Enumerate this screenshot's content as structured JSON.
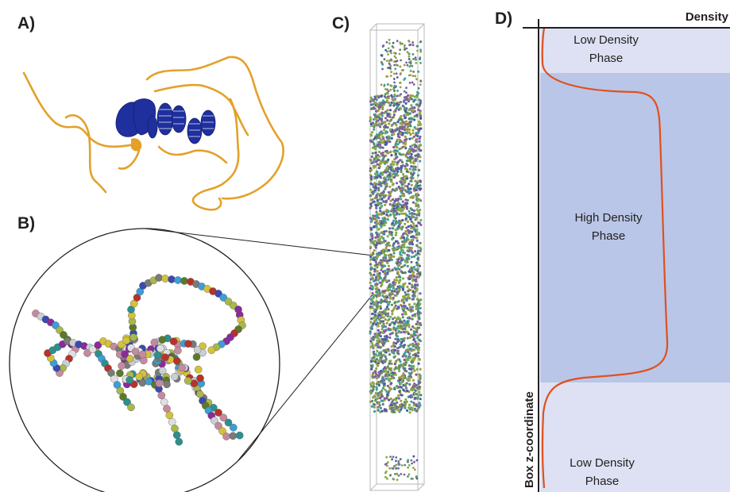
{
  "panels": {
    "a": {
      "label": "A)"
    },
    "b": {
      "label": "B)"
    },
    "c": {
      "label": "C)"
    },
    "d": {
      "label": "D)"
    }
  },
  "density_plot": {
    "x_axis_label": "Density",
    "y_axis_label": "Box z-coordinate",
    "phases": [
      {
        "line1": "Low Density",
        "line2": "Phase",
        "kind": "low"
      },
      {
        "line1": "High Density",
        "line2": "Phase",
        "kind": "high"
      },
      {
        "line1": "Low Density",
        "line2": "Phase",
        "kind": "low"
      }
    ],
    "colors": {
      "low_phase": "#dde1f3",
      "high_phase": "#b9c6e7",
      "profile_curve": "#e0501e",
      "axes": "#231f20"
    }
  },
  "molecule": {
    "colors": {
      "helix": "#1f2f9e",
      "coil": "#e3a12a",
      "box_edges": "#b8b8b8"
    }
  }
}
